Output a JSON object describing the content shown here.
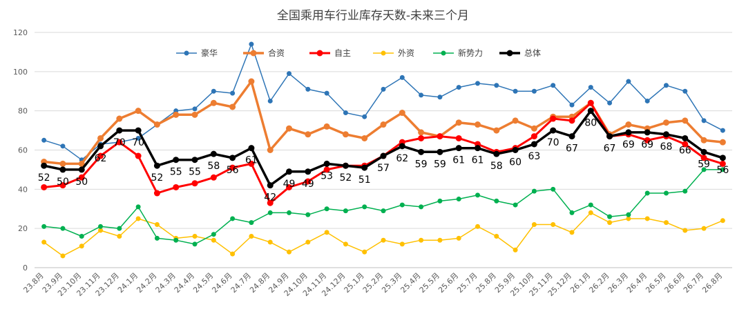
{
  "chart_data": {
    "type": "line",
    "title": "全国乘用车行业库存天数-未来三个月",
    "xlabel": "",
    "ylabel": "",
    "ylim": [
      0,
      120
    ],
    "yticks": [
      0,
      20,
      40,
      60,
      80,
      100,
      120
    ],
    "grid": true,
    "legend_position": "top",
    "categories": [
      "23.8月",
      "23.9月",
      "23.10月",
      "23.11月",
      "23.12月",
      "24.1月",
      "24.2月",
      "24.3月",
      "24.4月",
      "24.5月",
      "24.6月",
      "24.7月",
      "24.8月",
      "24.9月",
      "24.10月",
      "24.11月",
      "24.12月",
      "25.1月",
      "25.2月",
      "25.3月",
      "25.4月",
      "25.5月",
      "25.6月",
      "25.7月",
      "25.8月",
      "25.9月",
      "25.10月",
      "25.11月",
      "25.12月",
      "26.1月",
      "26.2月",
      "26.3月",
      "26.4月",
      "26.5月",
      "26.6月",
      "26.7月",
      "26.8月"
    ],
    "series": [
      {
        "name": "豪华",
        "color": "#2E75B6",
        "width": 1.5,
        "values": [
          65,
          62,
          55,
          63,
          64,
          66,
          73,
          80,
          81,
          90,
          89,
          114,
          85,
          99,
          91,
          89,
          79,
          77,
          91,
          97,
          88,
          87,
          92,
          94,
          93,
          90,
          90,
          93,
          83,
          92,
          84,
          95,
          85,
          93,
          90,
          75,
          70
        ]
      },
      {
        "name": "合资",
        "color": "#ED7D31",
        "width": 3.5,
        "values": [
          54,
          53,
          53,
          66,
          76,
          80,
          73,
          78,
          78,
          84,
          82,
          95,
          60,
          71,
          68,
          72,
          68,
          66,
          73,
          79,
          69,
          67,
          74,
          73,
          70,
          75,
          71,
          77,
          77,
          84,
          68,
          73,
          71,
          74,
          75,
          65,
          64
        ]
      },
      {
        "name": "自主",
        "color": "#FF0000",
        "width": 3,
        "values": [
          41,
          42,
          46,
          57,
          64,
          57,
          38,
          41,
          43,
          46,
          51,
          53,
          33,
          41,
          44,
          50,
          52,
          52,
          57,
          64,
          66,
          67,
          66,
          63,
          59,
          61,
          67,
          76,
          75,
          84,
          67,
          68,
          65,
          67,
          63,
          56,
          53
        ]
      },
      {
        "name": "外资",
        "color": "#FFC000",
        "width": 1.5,
        "values": [
          13,
          6,
          11,
          19,
          16,
          25,
          22,
          15,
          16,
          14,
          7,
          16,
          13,
          8,
          13,
          18,
          12,
          8,
          14,
          12,
          14,
          14,
          15,
          21,
          16,
          9,
          22,
          22,
          18,
          28,
          23,
          25,
          25,
          23,
          19,
          20,
          24
        ]
      },
      {
        "name": "新势力",
        "color": "#00B050",
        "width": 1.5,
        "values": [
          21,
          20,
          16,
          21,
          20,
          31,
          15,
          14,
          12,
          17,
          25,
          23,
          28,
          28,
          27,
          30,
          29,
          31,
          29,
          32,
          31,
          34,
          35,
          37,
          34,
          32,
          39,
          40,
          28,
          32,
          26,
          27,
          38,
          38,
          39,
          50,
          50
        ]
      },
      {
        "name": "总体",
        "color": "#000000",
        "width": 3.5,
        "values": [
          52,
          50,
          50,
          62,
          70,
          70,
          52,
          55,
          55,
          58,
          56,
          61,
          42,
          49,
          49,
          53,
          52,
          51,
          57,
          62,
          59,
          59,
          61,
          61,
          58,
          60,
          63,
          70,
          67,
          80,
          67,
          69,
          69,
          68,
          66,
          59,
          56
        ]
      }
    ],
    "data_labels": [
      "52",
      "50",
      "50",
      "62",
      "70",
      "70",
      "52",
      "55",
      "55",
      "58",
      "56",
      "61",
      "42",
      "49",
      "49",
      "53",
      "52",
      "51",
      "57",
      "62",
      "59",
      "59",
      "61",
      "61",
      "58",
      "60",
      "63",
      "70",
      "67",
      "80",
      "67",
      "69",
      "69",
      "68",
      "66",
      "59",
      "56"
    ]
  }
}
